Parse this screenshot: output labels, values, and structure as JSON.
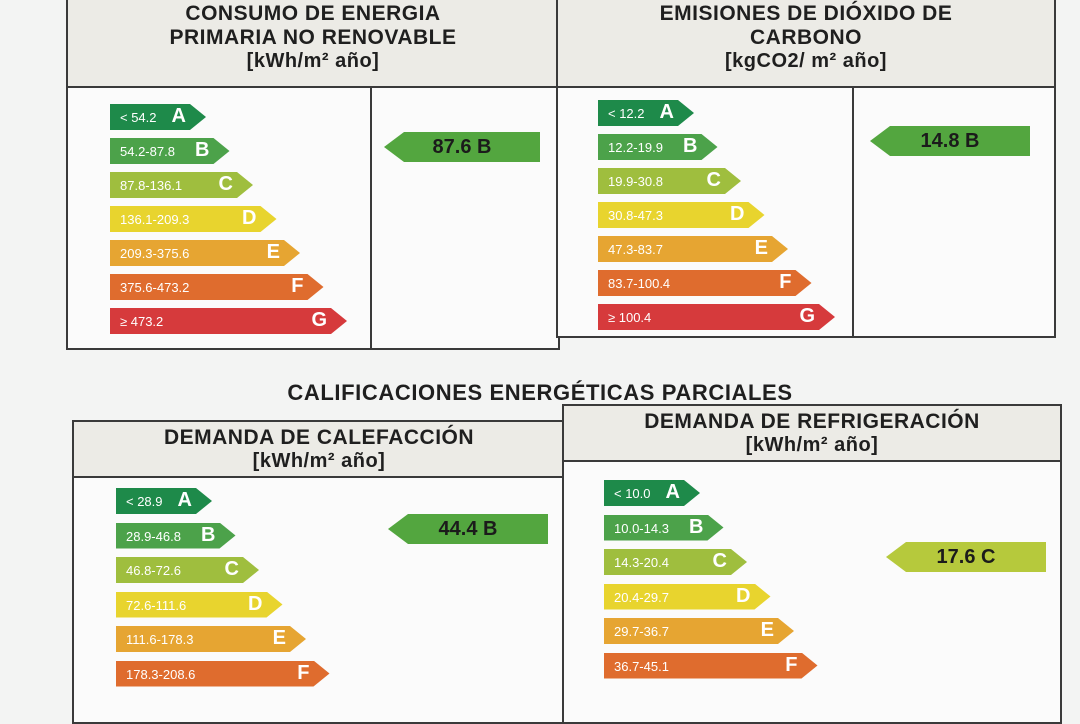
{
  "colors": {
    "A": "#1e8a4a",
    "B": "#4ca24a",
    "C": "#9fbe3e",
    "D": "#e8d42e",
    "E": "#e6a532",
    "F": "#df6c2e",
    "G": "#d63a3c",
    "rating_green": "#53a63f",
    "rating_yellowgreen": "#b6c93c"
  },
  "panels": {
    "primary": {
      "title_line1": "CONSUMO DE ENERGIA",
      "title_line2": "PRIMARIA NO RENOVABLE",
      "unit": "[kWh/m² año]",
      "scale": [
        {
          "range": "< 54.2",
          "letter": "A"
        },
        {
          "range": "54.2-87.8",
          "letter": "B"
        },
        {
          "range": "87.8-136.1",
          "letter": "C"
        },
        {
          "range": "136.1-209.3",
          "letter": "D"
        },
        {
          "range": "209.3-375.6",
          "letter": "E"
        },
        {
          "range": "375.6-473.2",
          "letter": "F"
        },
        {
          "range": "≥ 473.2",
          "letter": "G"
        }
      ],
      "rating": "87.6 B"
    },
    "co2": {
      "title_line1": "EMISIONES DE DIÓXIDO DE",
      "title_line2": "CARBONO",
      "unit": "[kgCO2/ m² año]",
      "scale": [
        {
          "range": "< 12.2",
          "letter": "A"
        },
        {
          "range": "12.2-19.9",
          "letter": "B"
        },
        {
          "range": "19.9-30.8",
          "letter": "C"
        },
        {
          "range": "30.8-47.3",
          "letter": "D"
        },
        {
          "range": "47.3-83.7",
          "letter": "E"
        },
        {
          "range": "83.7-100.4",
          "letter": "F"
        },
        {
          "range": "≥ 100.4",
          "letter": "G"
        }
      ],
      "rating": "14.8 B"
    },
    "heating": {
      "title_line1": "DEMANDA DE CALEFACCIÓN",
      "unit": "[kWh/m² año]",
      "scale": [
        {
          "range": "< 28.9",
          "letter": "A"
        },
        {
          "range": "28.9-46.8",
          "letter": "B"
        },
        {
          "range": "46.8-72.6",
          "letter": "C"
        },
        {
          "range": "72.6-111.6",
          "letter": "D"
        },
        {
          "range": "111.6-178.3",
          "letter": "E"
        },
        {
          "range": "178.3-208.6",
          "letter": "F"
        }
      ],
      "rating": "44.4 B"
    },
    "cooling": {
      "title_line1": "DEMANDA DE REFRIGERACIÓN",
      "unit": "[kWh/m² año]",
      "scale": [
        {
          "range": "< 10.0",
          "letter": "A"
        },
        {
          "range": "10.0-14.3",
          "letter": "B"
        },
        {
          "range": "14.3-20.4",
          "letter": "C"
        },
        {
          "range": "20.4-29.7",
          "letter": "D"
        },
        {
          "range": "29.7-36.7",
          "letter": "E"
        },
        {
          "range": "36.7-45.1",
          "letter": "F"
        }
      ],
      "rating": "17.6 C"
    }
  },
  "section_title": "CALIFICACIONES ENERGÉTICAS PARCIALES"
}
